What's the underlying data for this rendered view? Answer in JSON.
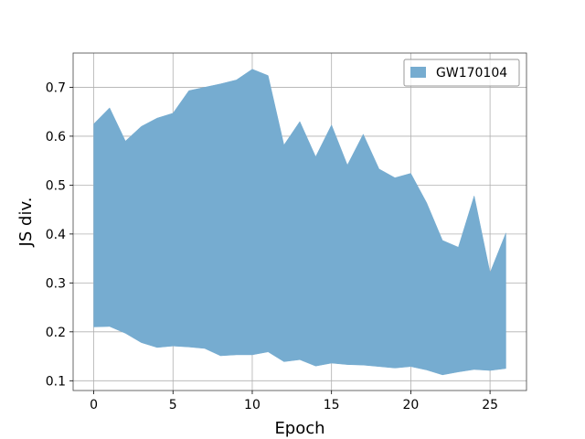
{
  "chart_data": {
    "type": "area",
    "xlabel": "Epoch",
    "ylabel": "JS div.",
    "xlim": [
      -1.3,
      27.3
    ],
    "ylim": [
      0.08,
      0.77
    ],
    "xticks": [
      0,
      5,
      10,
      15,
      20,
      25
    ],
    "yticks": [
      0.1,
      0.2,
      0.3,
      0.4,
      0.5,
      0.6,
      0.7
    ],
    "grid": true,
    "legend_position": "top-right",
    "series": [
      {
        "name": "GW170104",
        "color": "#76acd0",
        "x": [
          0,
          1,
          2,
          3,
          4,
          5,
          6,
          7,
          8,
          9,
          10,
          11,
          12,
          13,
          14,
          15,
          16,
          17,
          18,
          19,
          20,
          21,
          22,
          23,
          24,
          25,
          26
        ],
        "upper": [
          0.625,
          0.658,
          0.59,
          0.62,
          0.637,
          0.647,
          0.693,
          0.7,
          0.707,
          0.715,
          0.737,
          0.724,
          0.582,
          0.63,
          0.558,
          0.623,
          0.541,
          0.604,
          0.533,
          0.515,
          0.524,
          0.464,
          0.387,
          0.373,
          0.478,
          0.321,
          0.402
        ],
        "lower": [
          0.21,
          0.211,
          0.197,
          0.178,
          0.168,
          0.171,
          0.169,
          0.166,
          0.151,
          0.153,
          0.153,
          0.159,
          0.139,
          0.143,
          0.13,
          0.136,
          0.133,
          0.132,
          0.129,
          0.126,
          0.129,
          0.122,
          0.112,
          0.118,
          0.123,
          0.121,
          0.125
        ]
      }
    ]
  }
}
